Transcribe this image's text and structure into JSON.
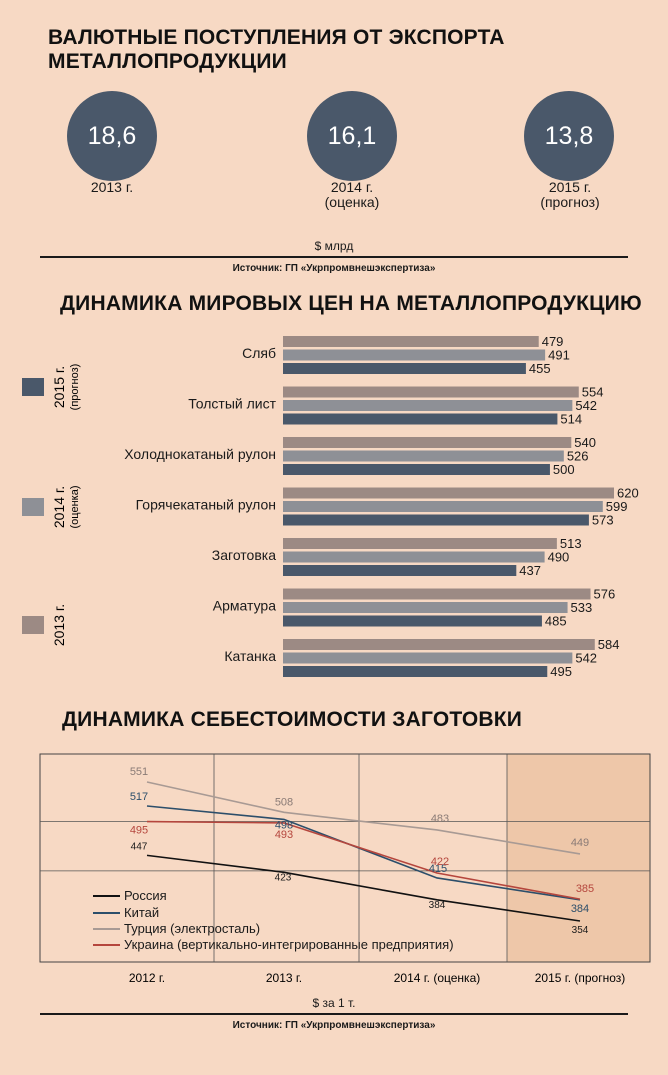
{
  "section1": {
    "title_line1": "ВАЛЮТНЫЕ ПОСТУПЛЕНИЯ ОТ ЭКСПОРТА",
    "title_line2": "МЕТАЛЛОПРОДУКЦИИ",
    "items": [
      {
        "value": "18,6",
        "year": "2013 г.",
        "note": ""
      },
      {
        "value": "16,1",
        "year": "2014 г.",
        "note": "(оценка)"
      },
      {
        "value": "13,8",
        "year": "2015 г.",
        "note": "(прогноз)"
      }
    ],
    "unit": "$ млрд",
    "source": "Источник: ГП «Укрпромвнешэкспертиза»"
  },
  "section2": {
    "title": "ДИНАМИКА МИРОВЫХ ЦЕН НА МЕТАЛЛОПРОДУКЦИЮ"
  },
  "section3": {
    "title": "ДИНАМИКА СЕБЕСТОИМОСТИ ЗАГОТОВКИ",
    "unit": "$ за 1 т.",
    "source": "Источник: ГП «Укрпромвнешэкспертиза»"
  },
  "colors": {
    "background": "#f7d9c4",
    "circle": "#4a586a",
    "bar2013": "#9c8a84",
    "bar2014": "#8e9096",
    "bar2015": "#4a586a",
    "russia": "#111111",
    "china": "#2c4e6a",
    "turkey": "#a89a94",
    "ukraine": "#b5463d"
  },
  "chart_data": [
    {
      "type": "bar",
      "title": "ДИНАМИКА МИРОВЫХ ЦЕН НА МЕТАЛЛОПРОДУКЦИЮ",
      "orientation": "horizontal",
      "categories": [
        "Сляб",
        "Толстый лист",
        "Холоднокатаный рулон",
        "Горячекатаный рулон",
        "Заготовка",
        "Арматура",
        "Катанка"
      ],
      "series": [
        {
          "name": "2013 г.",
          "sublabel": "",
          "values": [
            479,
            554,
            540,
            620,
            513,
            576,
            584
          ]
        },
        {
          "name": "2014 г.",
          "sublabel": "(оценка)",
          "values": [
            491,
            542,
            526,
            599,
            490,
            533,
            542
          ]
        },
        {
          "name": "2015 г.",
          "sublabel": "(прогноз)",
          "values": [
            455,
            514,
            500,
            573,
            437,
            485,
            495
          ]
        }
      ],
      "legend_position": "left"
    },
    {
      "type": "line",
      "title": "ДИНАМИКА СЕБЕСТОИМОСТИ ЗАГОТОВКИ",
      "categories": [
        "2012 г.",
        "2013 г.",
        "2014 г. (оценка)",
        "2015 г. (прогноз)"
      ],
      "series": [
        {
          "name": "Россия",
          "values": [
            447,
            423,
            384,
            354
          ]
        },
        {
          "name": "Китай",
          "values": [
            517,
            498,
            415,
            384
          ]
        },
        {
          "name": "Турция (электросталь)",
          "values": [
            551,
            508,
            483,
            449
          ]
        },
        {
          "name": "Украина (вертикально-интегрированные предприятия)",
          "values": [
            495,
            493,
            422,
            385
          ]
        }
      ],
      "ylabel": "$ за 1 т.",
      "grid": true,
      "legend_position": "bottom-left"
    }
  ]
}
